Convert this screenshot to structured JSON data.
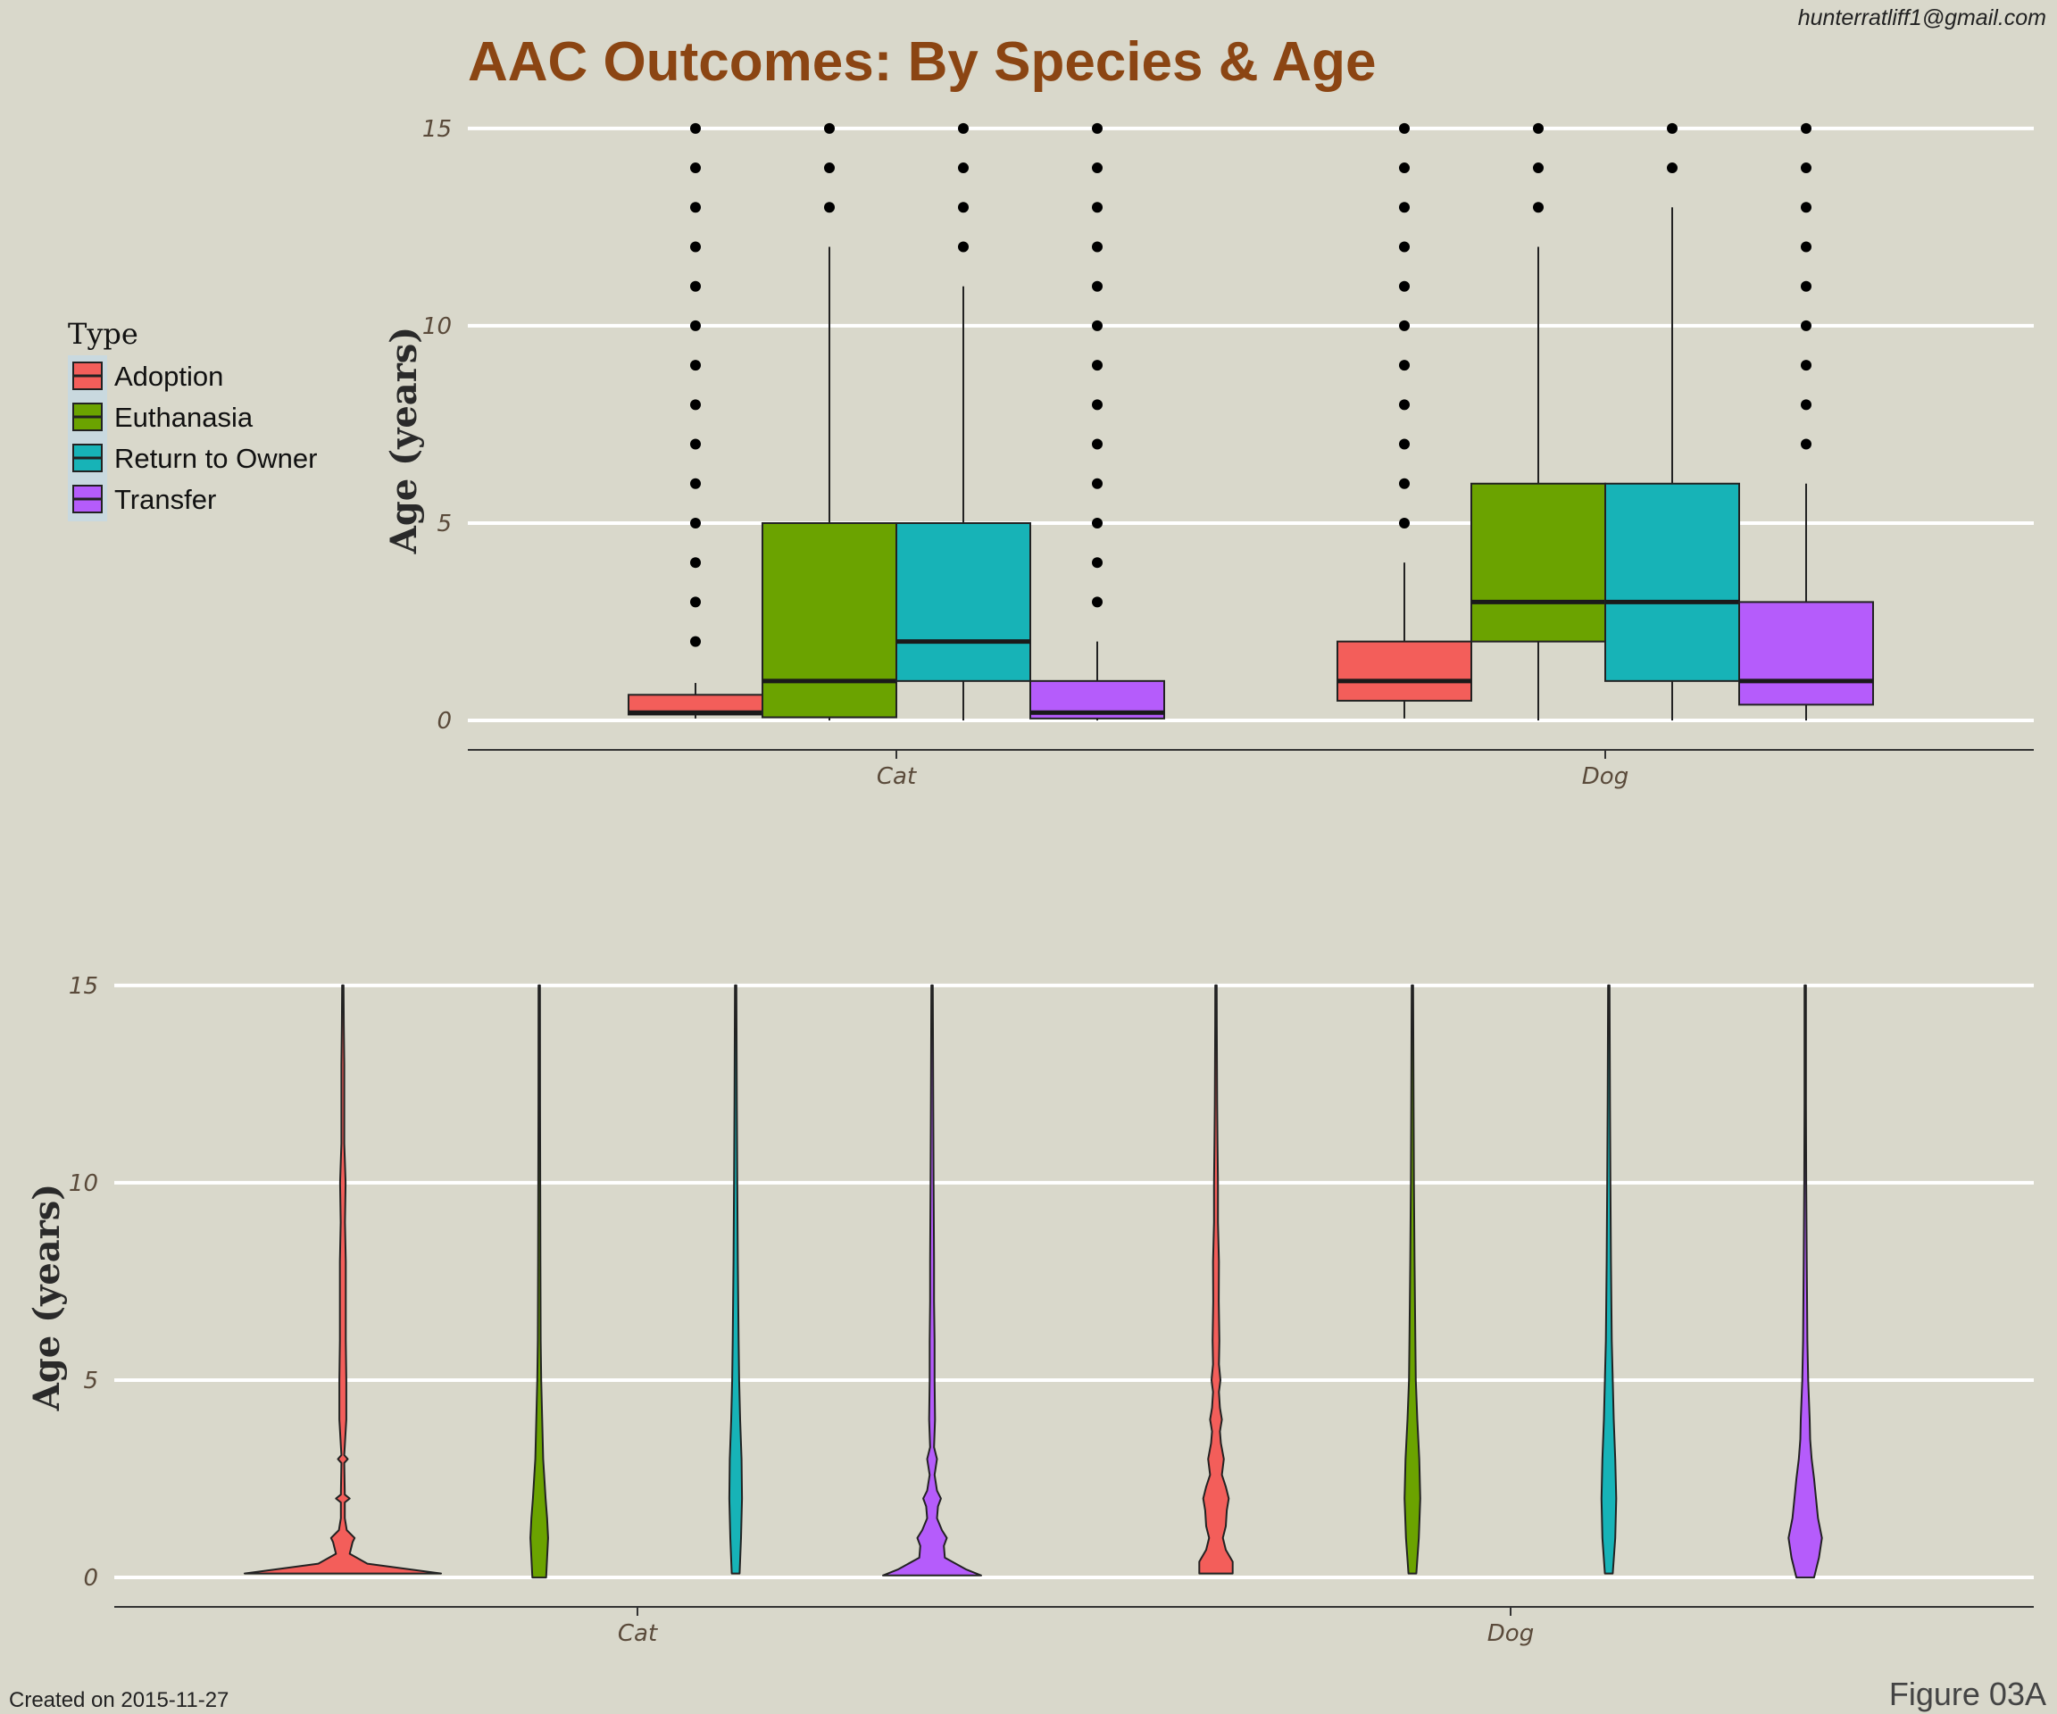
{
  "title": "AAC Outcomes: By Species & Age",
  "author_email": "hunterratliff1@gmail.com",
  "created_note": "Created on 2015-11-27",
  "figure_label": "Figure 03A",
  "legend": {
    "title": "Type",
    "placement": "left",
    "items": [
      {
        "label": "Adoption",
        "color": "#f35e5a"
      },
      {
        "label": "Euthanasia",
        "color": "#6ba300"
      },
      {
        "label": "Return to Owner",
        "color": "#17b3b7"
      },
      {
        "label": "Transfer",
        "color": "#b55cfb"
      }
    ]
  },
  "chart_data": [
    {
      "type": "box",
      "ylabel": "Age (years)",
      "ylim": [
        -0.7,
        15.2
      ],
      "yticks": [
        0,
        5,
        10,
        15
      ],
      "categories": [
        "Cat",
        "Dog"
      ],
      "series": [
        {
          "name": "Adoption",
          "color": "#f35e5a",
          "boxes": [
            {
              "category": "Cat",
              "q1": 0.15,
              "median": 0.2,
              "q3": 0.65,
              "whisker_low": 0.05,
              "whisker_high": 0.95,
              "outliers": [
                2,
                3,
                4,
                5,
                6,
                7,
                8,
                9,
                10,
                11,
                12,
                13,
                14,
                15
              ]
            },
            {
              "category": "Dog",
              "q1": 0.5,
              "median": 1,
              "q3": 2,
              "whisker_low": 0.05,
              "whisker_high": 4,
              "outliers": [
                5,
                6,
                7,
                8,
                9,
                10,
                11,
                12,
                13,
                14,
                15
              ]
            }
          ]
        },
        {
          "name": "Euthanasia",
          "color": "#6ba300",
          "boxes": [
            {
              "category": "Cat",
              "q1": 0.08,
              "median": 1,
              "q3": 5,
              "whisker_low": 0,
              "whisker_high": 12,
              "outliers": [
                13,
                14,
                15
              ]
            },
            {
              "category": "Dog",
              "q1": 2,
              "median": 3,
              "q3": 6,
              "whisker_low": 0,
              "whisker_high": 12,
              "outliers": [
                13,
                14,
                15
              ]
            }
          ]
        },
        {
          "name": "Return to Owner",
          "color": "#17b3b7",
          "boxes": [
            {
              "category": "Cat",
              "q1": 1,
              "median": 2,
              "q3": 5,
              "whisker_low": 0,
              "whisker_high": 11,
              "outliers": [
                12,
                13,
                14,
                15
              ]
            },
            {
              "category": "Dog",
              "q1": 1,
              "median": 3,
              "q3": 6,
              "whisker_low": 0,
              "whisker_high": 13,
              "outliers": [
                14,
                15
              ]
            }
          ]
        },
        {
          "name": "Transfer",
          "color": "#b55cfb",
          "boxes": [
            {
              "category": "Cat",
              "q1": 0.05,
              "median": 0.2,
              "q3": 1,
              "whisker_low": 0,
              "whisker_high": 2,
              "outliers": [
                3,
                4,
                5,
                6,
                7,
                8,
                9,
                10,
                11,
                12,
                13,
                14,
                15
              ]
            },
            {
              "category": "Dog",
              "q1": 0.4,
              "median": 1,
              "q3": 3,
              "whisker_low": 0,
              "whisker_high": 6,
              "outliers": [
                7,
                8,
                9,
                10,
                11,
                12,
                13,
                14,
                15
              ]
            }
          ]
        }
      ]
    },
    {
      "type": "violin",
      "ylabel": "Age (years)",
      "ylim": [
        -0.7,
        15.2
      ],
      "yticks": [
        0,
        5,
        10,
        15
      ],
      "categories": [
        "Cat",
        "Dog"
      ],
      "series": [
        {
          "name": "Adoption",
          "color": "#f35e5a",
          "violins": [
            {
              "category": "Cat",
              "min": 0.1,
              "max": 15,
              "profile": [
                [
                  0.1,
                  1.0
                ],
                [
                  0.2,
                  0.7
                ],
                [
                  0.35,
                  0.25
                ],
                [
                  0.6,
                  0.07
                ],
                [
                  0.9,
                  0.1
                ],
                [
                  1.0,
                  0.12
                ],
                [
                  1.2,
                  0.04
                ],
                [
                  1.5,
                  0.02
                ],
                [
                  1.9,
                  0.02
                ],
                [
                  2.0,
                  0.07
                ],
                [
                  2.1,
                  0.02
                ],
                [
                  2.9,
                  0.015
                ],
                [
                  3.0,
                  0.05
                ],
                [
                  3.1,
                  0.015
                ],
                [
                  4.0,
                  0.035
                ],
                [
                  5.0,
                  0.035
                ],
                [
                  6.0,
                  0.03
                ],
                [
                  7.0,
                  0.03
                ],
                [
                  8.0,
                  0.03
                ],
                [
                  9.0,
                  0.022
                ],
                [
                  10.0,
                  0.028
                ],
                [
                  11.0,
                  0.015
                ],
                [
                  12.0,
                  0.015
                ],
                [
                  13.0,
                  0.015
                ],
                [
                  14.0,
                  0.01
                ],
                [
                  15.0,
                  0.005
                ]
              ]
            },
            {
              "category": "Dog",
              "min": 0.1,
              "max": 15,
              "profile": [
                [
                  0.1,
                  0.17
                ],
                [
                  0.4,
                  0.17
                ],
                [
                  0.7,
                  0.1
                ],
                [
                  1.0,
                  0.07
                ],
                [
                  1.3,
                  0.1
                ],
                [
                  1.7,
                  0.11
                ],
                [
                  2.0,
                  0.13
                ],
                [
                  2.3,
                  0.1
                ],
                [
                  2.6,
                  0.06
                ],
                [
                  3.0,
                  0.08
                ],
                [
                  3.4,
                  0.05
                ],
                [
                  3.7,
                  0.04
                ],
                [
                  4.0,
                  0.06
                ],
                [
                  4.3,
                  0.04
                ],
                [
                  4.7,
                  0.03
                ],
                [
                  5.0,
                  0.045
                ],
                [
                  5.4,
                  0.03
                ],
                [
                  6.0,
                  0.035
                ],
                [
                  7.0,
                  0.028
                ],
                [
                  8.0,
                  0.03
                ],
                [
                  9.0,
                  0.02
                ],
                [
                  10.0,
                  0.02
                ],
                [
                  11.0,
                  0.015
                ],
                [
                  12.0,
                  0.012
                ],
                [
                  13.0,
                  0.01
                ],
                [
                  14.0,
                  0.008
                ],
                [
                  15.0,
                  0.005
                ]
              ]
            }
          ]
        },
        {
          "name": "Euthanasia",
          "color": "#6ba300",
          "violins": [
            {
              "category": "Cat",
              "min": 0,
              "max": 15,
              "profile": [
                [
                  0.0,
                  0.07
                ],
                [
                  0.5,
                  0.08
                ],
                [
                  1.0,
                  0.09
                ],
                [
                  1.5,
                  0.08
                ],
                [
                  2.0,
                  0.065
                ],
                [
                  3.0,
                  0.04
                ],
                [
                  4.0,
                  0.03
                ],
                [
                  5.0,
                  0.02
                ],
                [
                  6.0,
                  0.015
                ],
                [
                  8.0,
                  0.012
                ],
                [
                  10.0,
                  0.01
                ],
                [
                  12.0,
                  0.008
                ],
                [
                  15.0,
                  0.004
                ]
              ]
            },
            {
              "category": "Dog",
              "min": 0.1,
              "max": 15,
              "profile": [
                [
                  0.1,
                  0.04
                ],
                [
                  1.0,
                  0.065
                ],
                [
                  2.0,
                  0.08
                ],
                [
                  3.0,
                  0.07
                ],
                [
                  4.0,
                  0.05
                ],
                [
                  5.0,
                  0.035
                ],
                [
                  6.0,
                  0.03
                ],
                [
                  8.0,
                  0.022
                ],
                [
                  10.0,
                  0.015
                ],
                [
                  12.0,
                  0.012
                ],
                [
                  15.0,
                  0.005
                ]
              ]
            }
          ]
        },
        {
          "name": "Return to Owner",
          "color": "#17b3b7",
          "violins": [
            {
              "category": "Cat",
              "min": 0.1,
              "max": 15,
              "profile": [
                [
                  0.1,
                  0.04
                ],
                [
                  1.0,
                  0.055
                ],
                [
                  2.0,
                  0.065
                ],
                [
                  3.0,
                  0.06
                ],
                [
                  4.0,
                  0.045
                ],
                [
                  5.0,
                  0.035
                ],
                [
                  6.0,
                  0.03
                ],
                [
                  8.0,
                  0.022
                ],
                [
                  10.0,
                  0.016
                ],
                [
                  12.0,
                  0.012
                ],
                [
                  15.0,
                  0.005
                ]
              ]
            },
            {
              "category": "Dog",
              "min": 0.1,
              "max": 15,
              "profile": [
                [
                  0.1,
                  0.04
                ],
                [
                  1.0,
                  0.065
                ],
                [
                  2.0,
                  0.075
                ],
                [
                  3.0,
                  0.065
                ],
                [
                  4.0,
                  0.05
                ],
                [
                  5.0,
                  0.04
                ],
                [
                  6.0,
                  0.03
                ],
                [
                  8.0,
                  0.022
                ],
                [
                  10.0,
                  0.016
                ],
                [
                  12.0,
                  0.012
                ],
                [
                  15.0,
                  0.005
                ]
              ]
            }
          ]
        },
        {
          "name": "Transfer",
          "color": "#b55cfb",
          "violins": [
            {
              "category": "Cat",
              "min": 0.05,
              "max": 15,
              "profile": [
                [
                  0.05,
                  0.5
                ],
                [
                  0.2,
                  0.35
                ],
                [
                  0.5,
                  0.13
                ],
                [
                  0.8,
                  0.12
                ],
                [
                  1.0,
                  0.15
                ],
                [
                  1.2,
                  0.1
                ],
                [
                  1.5,
                  0.05
                ],
                [
                  1.8,
                  0.06
                ],
                [
                  2.0,
                  0.09
                ],
                [
                  2.2,
                  0.05
                ],
                [
                  2.6,
                  0.025
                ],
                [
                  3.0,
                  0.05
                ],
                [
                  3.3,
                  0.02
                ],
                [
                  4.0,
                  0.03
                ],
                [
                  5.0,
                  0.025
                ],
                [
                  6.0,
                  0.025
                ],
                [
                  7.0,
                  0.02
                ],
                [
                  8.0,
                  0.02
                ],
                [
                  10.0,
                  0.015
                ],
                [
                  12.0,
                  0.012
                ],
                [
                  15.0,
                  0.005
                ]
              ]
            },
            {
              "category": "Dog",
              "min": 0,
              "max": 15,
              "profile": [
                [
                  0.0,
                  0.09
                ],
                [
                  0.5,
                  0.14
                ],
                [
                  1.0,
                  0.17
                ],
                [
                  1.5,
                  0.13
                ],
                [
                  2.0,
                  0.11
                ],
                [
                  2.5,
                  0.09
                ],
                [
                  3.0,
                  0.065
                ],
                [
                  3.5,
                  0.05
                ],
                [
                  4.0,
                  0.045
                ],
                [
                  5.0,
                  0.03
                ],
                [
                  6.0,
                  0.022
                ],
                [
                  8.0,
                  0.015
                ],
                [
                  10.0,
                  0.01
                ],
                [
                  12.0,
                  0.007
                ],
                [
                  15.0,
                  0.003
                ]
              ]
            }
          ]
        }
      ]
    }
  ]
}
